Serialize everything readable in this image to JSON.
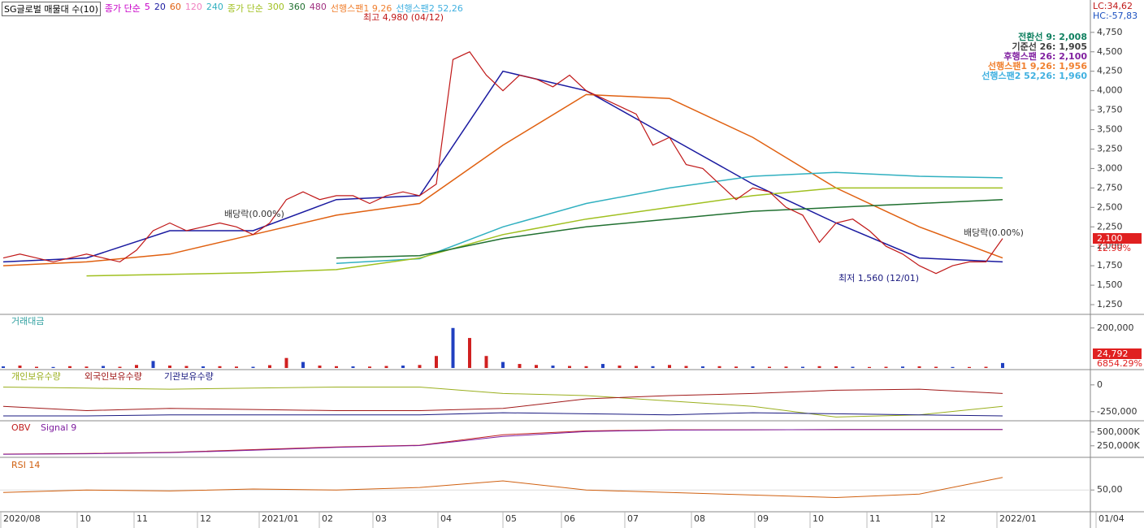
{
  "header": {
    "indicator": "SG글로벌 매물대 수(10)",
    "group1_label": "종가 단순",
    "group1_periods": [
      5,
      20,
      60,
      120,
      240
    ],
    "group1_colors": [
      "#c800c8",
      "#1a1aa0",
      "#e06010",
      "#f080c0",
      "#30b0c0"
    ],
    "group2_label": "종가 단순",
    "group2_periods": [
      300,
      360,
      480
    ],
    "group2_colors": [
      "#a0c020",
      "#207030",
      "#a03080"
    ],
    "span1": "선행스팬1 9,26",
    "span2": "선행스팬2 52,26"
  },
  "right_info": {
    "lc": "LC:34,62",
    "hc": "HC:-57,83"
  },
  "ichimoku": [
    "전환선 9: 2,008",
    "기준선 26: 1,905",
    "후행스팬 26: 2,100",
    "선행스팬1 9,26: 1,956",
    "선행스팬2 52,26: 1,960"
  ],
  "ichimoku_colors": [
    "#108060",
    "#404040",
    "#8020a0",
    "#f08030",
    "#40b0e0"
  ],
  "annotations": {
    "high": "최고 4,980 (04/12)",
    "low": "최저 1,560 (12/01)",
    "dividend1": "배당락(0.00%)",
    "dividend2": "배당락(0.00%)"
  },
  "badges": {
    "price": "2,100",
    "change": "12.90%",
    "volume": "24,792",
    "volume_change": "6854.29%"
  },
  "x_labels": [
    "2020/08",
    "10",
    "11",
    "12",
    "2021/01",
    "02",
    "03",
    "04",
    "05",
    "06",
    "07",
    "08",
    "09",
    "10",
    "11",
    "12",
    "2022/01",
    "01/04"
  ],
  "price": {
    "ylim": [
      1125,
      5145
    ],
    "yticks": [
      {
        "value": 1250,
        "label": "1,250"
      },
      {
        "value": 1500,
        "label": "1,500"
      },
      {
        "value": 1750,
        "label": "1,750"
      },
      {
        "value": 2000,
        "label": "2,000"
      },
      {
        "value": 2250,
        "label": "2,250"
      },
      {
        "value": 2500,
        "label": "2,500"
      },
      {
        "value": 2750,
        "label": "2,750"
      },
      {
        "value": 3000,
        "label": "3,000"
      },
      {
        "value": 3250,
        "label": "3,250"
      },
      {
        "value": 3500,
        "label": "3,500"
      },
      {
        "value": 3750,
        "label": "3,750"
      },
      {
        "value": 4000,
        "label": "4,000"
      },
      {
        "value": 4250,
        "label": "4,250"
      },
      {
        "value": 4500,
        "label": "4,500"
      },
      {
        "value": 4750,
        "label": "4,750"
      }
    ],
    "close": [
      1850,
      1900,
      1850,
      1800,
      1850,
      1900,
      1850,
      1800,
      1950,
      2200,
      2300,
      2200,
      2250,
      2300,
      2250,
      2150,
      2300,
      2600,
      2700,
      2600,
      2650,
      2650,
      2550,
      2650,
      2700,
      2650,
      2800,
      4400,
      4500,
      4200,
      4000,
      4200,
      4150,
      4050,
      4200,
      4000,
      3900,
      3800,
      3700,
      3300,
      3400,
      3050,
      3000,
      2800,
      2600,
      2750,
      2700,
      2500,
      2400,
      2050,
      2300,
      2350,
      2200,
      2000,
      1900,
      1750,
      1650,
      1750,
      1800,
      1800,
      2100
    ],
    "ma": [
      {
        "color": "#1a1aa0",
        "values": [
          1800,
          1850,
          2200,
          2200,
          2600,
          2650,
          4250,
          4000,
          3400,
          2800,
          2300,
          1850,
          1800
        ]
      },
      {
        "color": "#e06010",
        "values": [
          1750,
          1800,
          1900,
          2150,
          2400,
          2550,
          3300,
          3950,
          3900,
          3400,
          2750,
          2250,
          1850
        ]
      },
      {
        "color": "#30b0c0",
        "values": [
          null,
          null,
          null,
          null,
          1780,
          1840,
          2250,
          2550,
          2750,
          2900,
          2950,
          2900,
          2880
        ]
      },
      {
        "color": "#a0c020",
        "values": [
          null,
          1620,
          1640,
          1660,
          1700,
          1850,
          2150,
          2350,
          2500,
          2650,
          2750,
          2750,
          2750
        ]
      },
      {
        "color": "#207030",
        "values": [
          null,
          null,
          null,
          null,
          1850,
          1880,
          2100,
          2250,
          2350,
          2450,
          2500,
          2550,
          2600
        ]
      }
    ]
  },
  "volume": {
    "label": "거래대금",
    "ylim": [
      0,
      260000
    ],
    "yticks": [
      {
        "value": 200000,
        "label": "200,000"
      }
    ],
    "values": [
      8000,
      12000,
      6000,
      5000,
      9000,
      7000,
      10000,
      6000,
      15000,
      35000,
      12000,
      10000,
      8000,
      9000,
      7000,
      6000,
      14000,
      50000,
      30000,
      12000,
      9000,
      8000,
      7000,
      10000,
      12000,
      15000,
      60000,
      200000,
      150000,
      60000,
      30000,
      20000,
      15000,
      12000,
      10000,
      9000,
      20000,
      12000,
      10000,
      9000,
      15000,
      10000,
      8000,
      9000,
      7000,
      8000,
      6000,
      7000,
      6000,
      9000,
      8000,
      6000,
      5000,
      6000,
      7000,
      8000,
      6000,
      5000,
      5000,
      6000,
      24792
    ]
  },
  "holdings": {
    "labels": [
      "개인보유수량",
      "외국인보유수량",
      "기관보유수량"
    ],
    "colors": [
      "#9aaf1e",
      "#a01818",
      "#1a1a80"
    ],
    "ylim": [
      -320000,
      120000
    ],
    "yticks": [
      0,
      {
        "value": -250000,
        "label": "-250,000"
      }
    ],
    "series": [
      [
        -20000,
        -30000,
        -40000,
        -30000,
        -20000,
        -20000,
        -80000,
        -100000,
        -150000,
        -200000,
        -300000,
        -280000,
        -200000
      ],
      [
        -200000,
        -240000,
        -220000,
        -230000,
        -240000,
        -240000,
        -220000,
        -130000,
        -100000,
        -80000,
        -50000,
        -40000,
        -80000
      ],
      [
        -290000,
        -290000,
        -280000,
        -280000,
        -280000,
        -280000,
        -260000,
        -270000,
        -280000,
        -260000,
        -270000,
        -280000,
        -290000
      ]
    ]
  },
  "obv": {
    "labels": [
      "OBV",
      "Signal 9"
    ],
    "colors": [
      "#c02020",
      "#8020a0"
    ],
    "ylim": [
      70000,
      660000
    ],
    "yticks": [
      {
        "value": 500000,
        "label": "500,000K"
      },
      {
        "value": 250000,
        "label": "250,000K"
      }
    ],
    "series": [
      [
        100000,
        110000,
        130000,
        180000,
        230000,
        260000,
        450000,
        520000,
        540000,
        540000,
        545000,
        545000,
        545000
      ],
      [
        95000,
        105000,
        125000,
        170000,
        220000,
        255000,
        420000,
        510000,
        535000,
        540000,
        543000,
        545000,
        545000
      ]
    ]
  },
  "rsi": {
    "label": "RSI 14",
    "color": "#d06010",
    "ylim": [
      10,
      110
    ],
    "yticks": [
      {
        "value": 50,
        "label": "50,00"
      }
    ],
    "values": [
      45,
      50,
      48,
      52,
      50,
      55,
      68,
      50,
      45,
      40,
      35,
      42,
      75
    ]
  }
}
